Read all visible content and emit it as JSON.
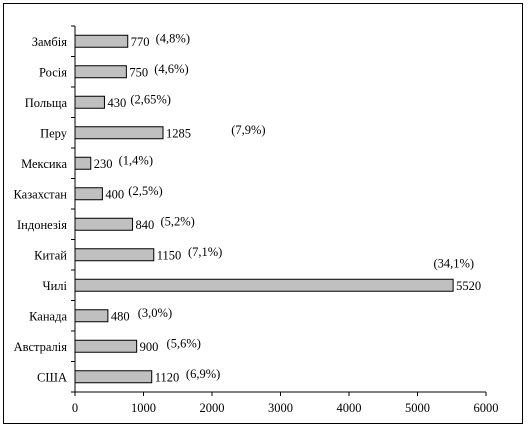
{
  "chart_data": {
    "type": "bar",
    "orientation": "horizontal",
    "categories": [
      "Замбія",
      "Росія",
      "Польща",
      "Перу",
      "Мексика",
      "Казахстан",
      "Індонезія",
      "Китай",
      "Чилі",
      "Канада",
      "Австралія",
      "США"
    ],
    "values": [
      770,
      750,
      430,
      1285,
      230,
      400,
      840,
      1150,
      5520,
      480,
      900,
      1120
    ],
    "value_labels": [
      "770",
      "750",
      "430",
      "1285",
      "230",
      "400",
      "840",
      "1150",
      "5520",
      "480",
      "900",
      "1120"
    ],
    "share_labels": [
      "(4,8%)",
      "(4,6%)",
      "(2,65%)",
      "(7,9%)",
      "(1,4%)",
      "(2,5%)",
      "(5,2%)",
      "(7,1%)",
      "(34,1%)",
      "(3,0%)",
      "(5,6%)",
      "(6,9%)"
    ],
    "xlim": [
      0,
      6000
    ],
    "x_ticks": [
      0,
      1000,
      2000,
      3000,
      4000,
      5000,
      6000
    ],
    "x_tick_labels": [
      "0",
      "1000",
      "2000",
      "3000",
      "4000",
      "5000",
      "6000"
    ],
    "grid": false,
    "legend": "none",
    "title": "",
    "xlabel": "",
    "ylabel": "",
    "bar_color": "#c0c0c0"
  }
}
